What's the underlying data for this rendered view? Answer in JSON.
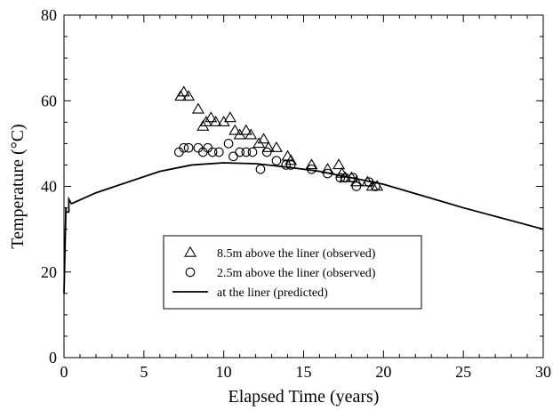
{
  "chart_data": {
    "type": "scatter",
    "title": "",
    "xlabel": "Elapsed Time (years)",
    "ylabel": "Temperature (°C)",
    "xlim": [
      0,
      30
    ],
    "ylim": [
      0,
      80
    ],
    "xticks": [
      0,
      5,
      10,
      15,
      20,
      25,
      30
    ],
    "yticks": [
      0,
      20,
      40,
      60,
      80
    ],
    "xtick_labels": [
      "0",
      "5",
      "10",
      "15",
      "20",
      "25",
      "30"
    ],
    "ytick_labels": [
      "0",
      "20",
      "40",
      "60",
      "80"
    ],
    "grid": false,
    "legend_position": "bottom-center",
    "series": [
      {
        "name": "8.5m above the liner (observed)",
        "type": "scatter",
        "marker": "triangle",
        "color": "#000000",
        "x": [
          7.3,
          7.5,
          7.8,
          8.4,
          8.7,
          8.9,
          9.2,
          9.5,
          10.0,
          10.4,
          10.7,
          11.0,
          11.4,
          11.7,
          12.2,
          12.5,
          12.8,
          13.3,
          14.0,
          14.2,
          15.5,
          16.5,
          17.2,
          17.4,
          17.6,
          18.0,
          18.3,
          19.0,
          19.3,
          19.6
        ],
        "y": [
          61,
          62,
          61,
          58,
          54,
          55,
          56,
          55,
          55,
          56,
          53,
          52,
          53,
          52,
          50,
          51,
          49,
          49,
          47,
          46,
          45,
          44,
          45,
          43,
          42,
          42,
          41,
          41,
          40,
          40
        ]
      },
      {
        "name": "2.5m above the liner (observed)",
        "type": "scatter",
        "marker": "circle",
        "color": "#000000",
        "x": [
          7.2,
          7.5,
          7.8,
          8.4,
          8.7,
          9.0,
          9.3,
          9.7,
          10.3,
          10.6,
          11.0,
          11.4,
          11.8,
          12.3,
          12.7,
          13.3,
          13.9,
          14.2,
          15.5,
          16.5,
          17.3,
          17.6,
          18.1,
          18.3,
          19.1,
          19.5
        ],
        "y": [
          48,
          49,
          49,
          49,
          48,
          49,
          48,
          48,
          50,
          47,
          48,
          48,
          48,
          44,
          48,
          46,
          45,
          45,
          44,
          43,
          42,
          42,
          42,
          40,
          41,
          40
        ]
      },
      {
        "name": "at the liner (predicted)",
        "type": "line",
        "color": "#000000",
        "x": [
          0,
          0.12,
          0.12,
          0.3,
          0.3,
          0.45,
          0.5,
          2,
          6,
          8,
          10,
          12,
          14,
          16,
          18,
          20,
          25,
          30
        ],
        "y": [
          15,
          35,
          34,
          34,
          37,
          36,
          36,
          38.5,
          43.5,
          45,
          45.5,
          45.3,
          44.5,
          43.5,
          42,
          40.5,
          35,
          30
        ]
      }
    ]
  }
}
